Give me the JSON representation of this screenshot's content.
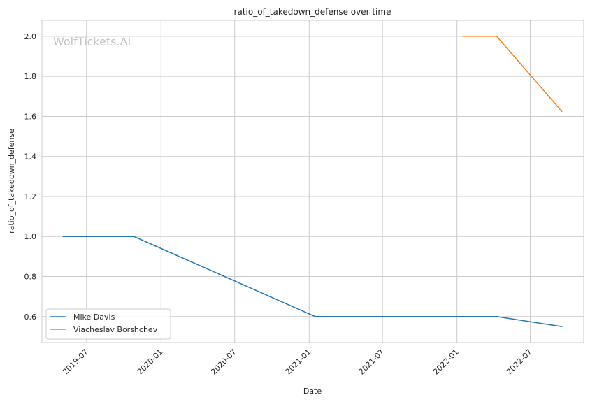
{
  "chart_data": {
    "type": "line",
    "title": "ratio_of_takedown_defense over time",
    "xlabel": "Date",
    "ylabel": "ratio_of_takedown_defense",
    "watermark": "WolfTickets.AI",
    "x_ticks": [
      "2019-07",
      "2020-01",
      "2020-07",
      "2021-01",
      "2021-07",
      "2022-01",
      "2022-07"
    ],
    "y_ticks": [
      "0.6",
      "0.8",
      "1.0",
      "1.2",
      "1.4",
      "1.6",
      "1.8",
      "2.0"
    ],
    "xlim": [
      "2019-03-13",
      "2022-11-10"
    ],
    "ylim": [
      0.47,
      2.08
    ],
    "grid": true,
    "legend_position": "lower-left",
    "series": [
      {
        "name": "Mike Davis",
        "color": "#1f77b4",
        "points": [
          {
            "x": "2019-05-04",
            "y": 1.0
          },
          {
            "x": "2019-10-26",
            "y": 1.0
          },
          {
            "x": "2021-01-16",
            "y": 0.6
          },
          {
            "x": "2022-04-09",
            "y": 0.6
          },
          {
            "x": "2022-09-17",
            "y": 0.55
          }
        ]
      },
      {
        "name": "Viacheslav Borshchev",
        "color": "#ff7f0e",
        "points": [
          {
            "x": "2022-01-15",
            "y": 2.0
          },
          {
            "x": "2022-04-09",
            "y": 2.0
          },
          {
            "x": "2022-09-17",
            "y": 1.625
          }
        ]
      }
    ]
  }
}
